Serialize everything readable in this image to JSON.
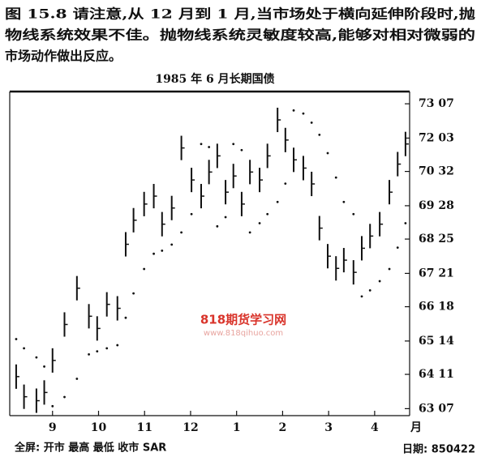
{
  "header": {
    "lines": [
      "图 15.8  请注意,从 12 月到 1 月,当市场处于横向延伸阶段时,抛",
      "物线系统效果不佳。抛物线系统灵敏度较高,能够对相对微弱的",
      "市场动作做出反应。"
    ]
  },
  "chart_data": {
    "type": "ohlc",
    "title": "1985 年 6 月长期国债",
    "x_label": "月",
    "xlim": [
      8.07,
      16.76
    ],
    "xticks": [
      9,
      10,
      11,
      12,
      {
        "value": 13,
        "label": "1"
      },
      {
        "value": 14,
        "label": "2"
      },
      {
        "value": 15,
        "label": "3"
      },
      {
        "value": 16,
        "label": "4"
      }
    ],
    "ylim": [
      62.99,
      73.62
    ],
    "yticks": [
      {
        "value": 63.21875,
        "label": "63 07"
      },
      {
        "value": 64.34375,
        "label": "64 11"
      },
      {
        "value": 65.4375,
        "label": "65 14"
      },
      {
        "value": 66.5625,
        "label": "66 18"
      },
      {
        "value": 67.65625,
        "label": "67 21"
      },
      {
        "value": 68.78125,
        "label": "68 25"
      },
      {
        "value": 69.875,
        "label": "69 28"
      },
      {
        "value": 71.0,
        "label": "70 32"
      },
      {
        "value": 72.09375,
        "label": "72 03"
      },
      {
        "value": 73.21875,
        "label": "73 07"
      }
    ],
    "color": "#111111",
    "x": [
      8.21,
      8.38,
      8.65,
      8.82,
      9.0,
      9.26,
      9.53,
      9.79,
      9.97,
      10.18,
      10.41,
      10.59,
      10.76,
      10.99,
      11.2,
      11.38,
      11.59,
      11.8,
      12.02,
      12.23,
      12.4,
      12.58,
      12.76,
      12.93,
      13.11,
      13.29,
      13.5,
      13.67,
      13.89,
      14.06,
      14.24,
      14.45,
      14.63,
      14.8,
      14.98,
      15.16,
      15.33,
      15.54,
      15.72,
      15.9,
      16.11,
      16.32,
      16.5,
      16.67
    ],
    "high": [
      64.67,
      64.01,
      63.88,
      64.15,
      65.2,
      66.38,
      67.57,
      66.65,
      66.25,
      67.04,
      66.91,
      69.01,
      69.8,
      70.33,
      70.59,
      69.67,
      70.2,
      72.17,
      71.12,
      70.59,
      71.38,
      71.91,
      70.72,
      71.25,
      70.33,
      71.38,
      71.12,
      71.91,
      73.09,
      72.43,
      71.78,
      71.51,
      70.99,
      69.54,
      68.62,
      68.22,
      68.49,
      68.09,
      68.88,
      69.28,
      69.67,
      70.72,
      71.64,
      72.3
    ],
    "low": [
      63.87,
      63.21,
      63.08,
      63.35,
      64.4,
      65.58,
      66.77,
      65.85,
      65.45,
      66.24,
      66.11,
      68.21,
      69.0,
      69.53,
      69.79,
      68.87,
      69.4,
      71.37,
      70.32,
      69.79,
      70.58,
      71.11,
      69.92,
      70.45,
      69.53,
      70.58,
      70.32,
      71.11,
      72.29,
      71.63,
      70.98,
      70.71,
      70.19,
      68.74,
      67.82,
      67.42,
      67.69,
      67.29,
      68.08,
      68.48,
      68.87,
      69.92,
      70.84,
      71.5
    ],
    "close": [
      64.27,
      63.61,
      63.48,
      63.75,
      64.8,
      65.98,
      67.17,
      66.25,
      65.85,
      66.64,
      66.51,
      68.61,
      69.4,
      69.93,
      70.19,
      69.27,
      69.8,
      71.77,
      70.72,
      70.19,
      70.98,
      71.51,
      70.32,
      70.85,
      69.93,
      70.98,
      70.72,
      71.51,
      72.69,
      72.03,
      71.38,
      71.11,
      70.59,
      69.14,
      68.22,
      67.82,
      68.09,
      67.69,
      68.48,
      68.88,
      69.27,
      70.32,
      71.24,
      71.9
    ],
    "sar": [
      65.5,
      65.2,
      64.9,
      64.6,
      63.3,
      63.6,
      64.2,
      65.0,
      65.1,
      65.2,
      65.3,
      66.2,
      67.0,
      67.8,
      68.3,
      68.4,
      68.6,
      69.0,
      69.6,
      71.9,
      71.8,
      69.2,
      69.5,
      71.9,
      71.7,
      69.0,
      69.3,
      69.6,
      70.0,
      70.6,
      73.0,
      72.9,
      72.6,
      72.2,
      71.6,
      70.8,
      70.0,
      69.6,
      66.9,
      67.1,
      67.4,
      67.8,
      68.5,
      69.3
    ]
  },
  "footer": {
    "legend": "全屏: 开市     最高     最低     收市     SAR",
    "date": "日期: 850422"
  },
  "watermark": {
    "logo": "818期货学习网",
    "url": "www.818qihuo.com"
  }
}
